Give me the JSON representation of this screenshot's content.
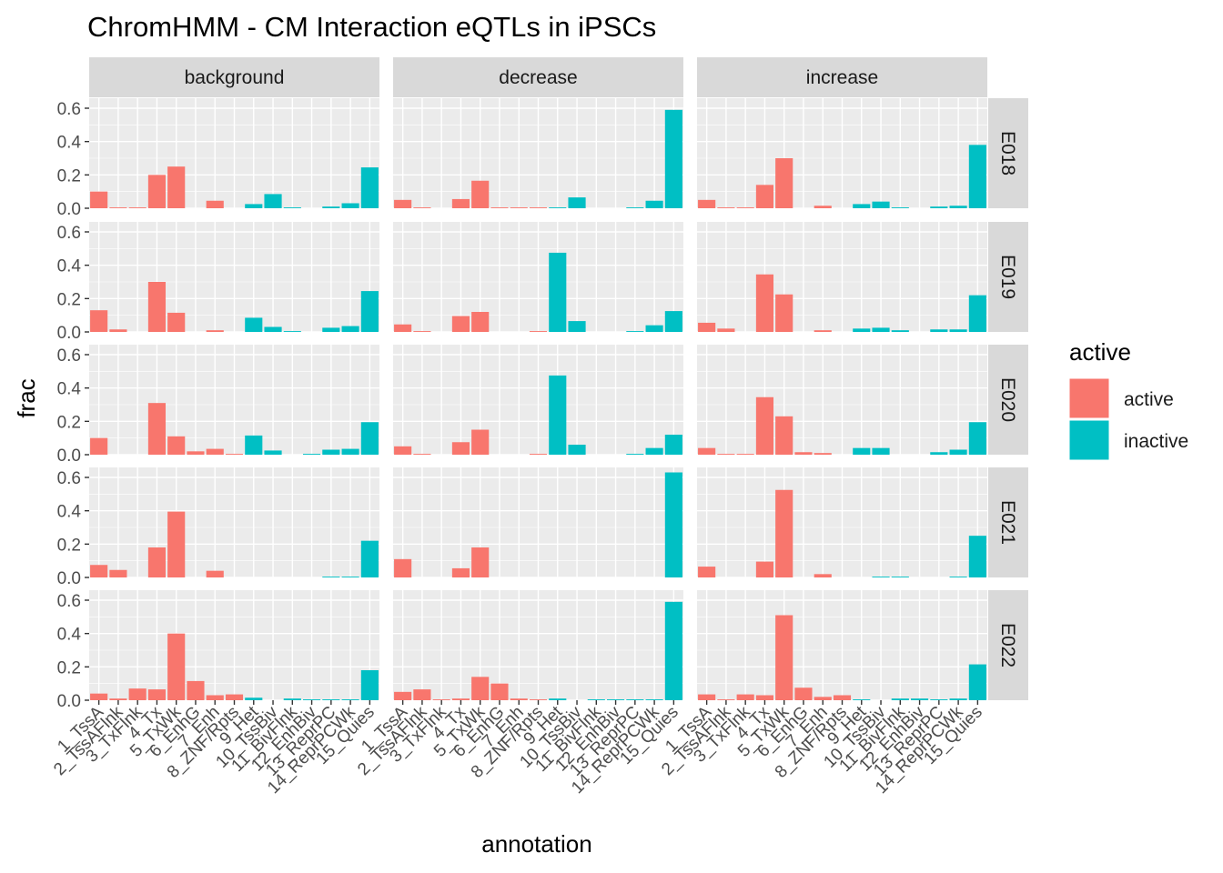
{
  "chart_data": {
    "type": "bar",
    "title": "ChromHMM - CM Interaction eQTLs in iPSCs",
    "xlabel": "annotation",
    "ylabel": "frac",
    "ylim": [
      0,
      0.66
    ],
    "y_ticks": [
      "0.0",
      "0.2",
      "0.4",
      "0.6"
    ],
    "y_tick_values": [
      0,
      0.2,
      0.4,
      0.6
    ],
    "categories": [
      "1_TssA",
      "2_TssAFlnk",
      "3_TxFlnk",
      "4_Tx",
      "5_TxWk",
      "6_EnhG",
      "7_Enh",
      "8_ZNF/Rpts",
      "9_Het",
      "10_TssBiv",
      "11_BivFlnk",
      "12_EnhBiv",
      "13_ReprPC",
      "14_ReprPCWk",
      "15_Quies"
    ],
    "active_categories": [
      "1_TssA",
      "2_TssAFlnk",
      "3_TxFlnk",
      "4_Tx",
      "5_TxWk",
      "6_EnhG",
      "7_Enh",
      "8_ZNF/Rpts"
    ],
    "columns": [
      "background",
      "decrease",
      "increase"
    ],
    "rows": [
      "E018",
      "E019",
      "E020",
      "E021",
      "E022"
    ],
    "legend": {
      "title": "active",
      "position": "right",
      "entries": [
        {
          "name": "active",
          "color": "#F8766D"
        },
        {
          "name": "inactive",
          "color": "#00BFC4"
        }
      ]
    },
    "grid": true,
    "panel_background": "#EBEBEB",
    "strip_background": "#D9D9D9",
    "panels": [
      {
        "row": "E018",
        "column": "background",
        "values": [
          0.1,
          0.005,
          0.005,
          0.2,
          0.25,
          0,
          0.045,
          0,
          0.025,
          0.085,
          0.005,
          0,
          0.01,
          0.03,
          0.245
        ]
      },
      {
        "row": "E018",
        "column": "decrease",
        "values": [
          0.05,
          0.005,
          0,
          0.055,
          0.165,
          0.005,
          0.005,
          0.005,
          0.005,
          0.065,
          0,
          0,
          0.005,
          0.045,
          0.59
        ]
      },
      {
        "row": "E018",
        "column": "increase",
        "values": [
          0.05,
          0.005,
          0.005,
          0.14,
          0.3,
          0,
          0.015,
          0,
          0.025,
          0.04,
          0.005,
          0,
          0.01,
          0.015,
          0.38
        ]
      },
      {
        "row": "E019",
        "column": "background",
        "values": [
          0.13,
          0.015,
          0,
          0.3,
          0.115,
          0,
          0.01,
          0,
          0.085,
          0.03,
          0.005,
          0,
          0.025,
          0.035,
          0.245
        ]
      },
      {
        "row": "E019",
        "column": "decrease",
        "values": [
          0.045,
          0.005,
          0,
          0.095,
          0.12,
          0,
          0,
          0.005,
          0.475,
          0.065,
          0,
          0,
          0.005,
          0.04,
          0.125
        ]
      },
      {
        "row": "E019",
        "column": "increase",
        "values": [
          0.055,
          0.02,
          0,
          0.345,
          0.225,
          0,
          0.01,
          0,
          0.02,
          0.025,
          0.01,
          0,
          0.015,
          0.015,
          0.22
        ]
      },
      {
        "row": "E020",
        "column": "background",
        "values": [
          0.1,
          0,
          0,
          0.31,
          0.11,
          0.02,
          0.035,
          0.005,
          0.115,
          0.025,
          0,
          0.005,
          0.03,
          0.035,
          0.195
        ]
      },
      {
        "row": "E020",
        "column": "decrease",
        "values": [
          0.05,
          0.005,
          0,
          0.075,
          0.15,
          0,
          0,
          0.005,
          0.475,
          0.06,
          0,
          0,
          0.005,
          0.04,
          0.12
        ]
      },
      {
        "row": "E020",
        "column": "increase",
        "values": [
          0.04,
          0.005,
          0.005,
          0.345,
          0.23,
          0.015,
          0.01,
          0,
          0.04,
          0.04,
          0,
          0,
          0.015,
          0.03,
          0.195
        ]
      },
      {
        "row": "E021",
        "column": "background",
        "values": [
          0.075,
          0.045,
          0,
          0.18,
          0.395,
          0,
          0.04,
          0,
          0,
          0,
          0,
          0,
          0.005,
          0.005,
          0.22
        ]
      },
      {
        "row": "E021",
        "column": "decrease",
        "values": [
          0.11,
          0,
          0,
          0.055,
          0.18,
          0,
          0,
          0,
          0,
          0,
          0,
          0,
          0,
          0,
          0.63
        ]
      },
      {
        "row": "E021",
        "column": "increase",
        "values": [
          0.065,
          0,
          0,
          0.095,
          0.525,
          0,
          0.02,
          0,
          0,
          0.005,
          0.005,
          0,
          0,
          0.005,
          0.25
        ]
      },
      {
        "row": "E022",
        "column": "background",
        "values": [
          0.04,
          0.01,
          0.07,
          0.065,
          0.4,
          0.115,
          0.03,
          0.035,
          0.015,
          0,
          0.01,
          0.005,
          0.005,
          0.005,
          0.18
        ]
      },
      {
        "row": "E022",
        "column": "decrease",
        "values": [
          0.05,
          0.065,
          0.005,
          0.01,
          0.14,
          0.1,
          0.01,
          0.005,
          0.01,
          0,
          0.005,
          0.005,
          0.005,
          0.005,
          0.59
        ]
      },
      {
        "row": "E022",
        "column": "increase",
        "values": [
          0.035,
          0.005,
          0.035,
          0.03,
          0.51,
          0.075,
          0.02,
          0.03,
          0.005,
          0,
          0.01,
          0.01,
          0.005,
          0.01,
          0.215
        ]
      }
    ]
  }
}
